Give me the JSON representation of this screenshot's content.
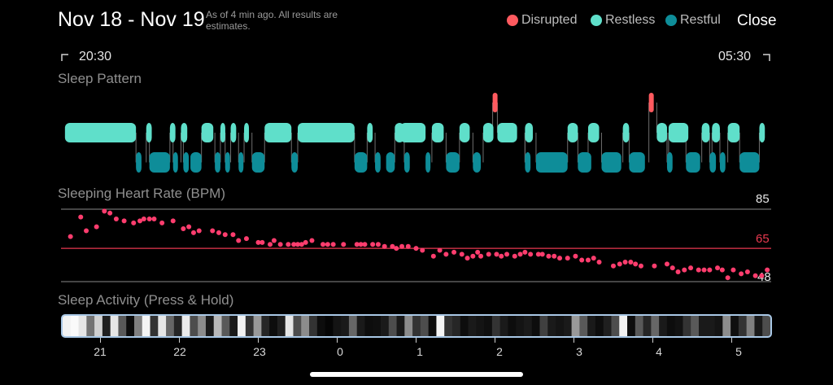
{
  "header": {
    "title": "Nov 18 - Nov 19",
    "subtitle": "As of 4 min ago. All results are estimates.",
    "legend": [
      {
        "label": "Disrupted",
        "color": "#ff5a5f"
      },
      {
        "label": "Restless",
        "color": "#5fdfca"
      },
      {
        "label": "Restful",
        "color": "#0e8d99"
      }
    ],
    "close_label": "Close"
  },
  "timeline": {
    "start": "20:30",
    "end": "05:30"
  },
  "sleep_pattern": {
    "title": "Sleep Pattern"
  },
  "heart_rate": {
    "title": "Sleeping Heart Rate (BPM)",
    "max_label": "85",
    "avg_label": "65",
    "min_label": "48",
    "colors": {
      "dot": "#ff3d6e",
      "avg_line": "#e8394f",
      "ref_line": "#8a8a8a"
    }
  },
  "sleep_activity": {
    "title": "Sleep Activity (Press & Hold)"
  },
  "x_axis_labels": [
    "21",
    "22",
    "23",
    "0",
    "1",
    "2",
    "3",
    "4",
    "5"
  ],
  "chart_data": [
    {
      "type": "line",
      "title": "Sleep Pattern",
      "x_range": [
        "20:30",
        "05:30"
      ],
      "stages": [
        "Disrupted",
        "Restless",
        "Restful"
      ],
      "segments": [
        {
          "stage": "Restless",
          "start": 20.55,
          "end": 21.45
        },
        {
          "stage": "Restful",
          "start": 21.45,
          "end": 21.52
        },
        {
          "stage": "Restful",
          "start": 21.62,
          "end": 21.88
        },
        {
          "stage": "Restless",
          "start": 21.58,
          "end": 21.65
        },
        {
          "stage": "Restful",
          "start": 21.92,
          "end": 21.98
        },
        {
          "stage": "Restless",
          "start": 21.88,
          "end": 21.95
        },
        {
          "stage": "Restful",
          "start": 22.05,
          "end": 22.12
        },
        {
          "stage": "Restless",
          "start": 22.02,
          "end": 22.1
        },
        {
          "stage": "Restful",
          "start": 22.14,
          "end": 22.28
        },
        {
          "stage": "Restless",
          "start": 22.28,
          "end": 22.43
        },
        {
          "stage": "Restful",
          "start": 22.45,
          "end": 22.52
        },
        {
          "stage": "Restless",
          "start": 22.52,
          "end": 22.58
        },
        {
          "stage": "Restful",
          "start": 22.58,
          "end": 22.62
        },
        {
          "stage": "Restless",
          "start": 22.65,
          "end": 22.72
        },
        {
          "stage": "Restful",
          "start": 22.75,
          "end": 22.8
        },
        {
          "stage": "Restless",
          "start": 22.82,
          "end": 22.88
        },
        {
          "stage": "Restful",
          "start": 22.92,
          "end": 23.08
        },
        {
          "stage": "Restless",
          "start": 23.08,
          "end": 23.42
        },
        {
          "stage": "Restful",
          "start": 23.42,
          "end": 23.5
        },
        {
          "stage": "Restless",
          "start": 23.5,
          "end": 24.22
        },
        {
          "stage": "Restful",
          "start": 24.22,
          "end": 24.38
        },
        {
          "stage": "Restless",
          "start": 24.38,
          "end": 24.45
        },
        {
          "stage": "Restful",
          "start": 24.48,
          "end": 24.55
        },
        {
          "stage": "Restless",
          "start": 24.73,
          "end": 24.85
        },
        {
          "stage": "Restful",
          "start": 24.62,
          "end": 24.73
        },
        {
          "stage": "Restful",
          "start": 24.85,
          "end": 24.92
        },
        {
          "stage": "Restless",
          "start": 24.8,
          "end": 25.12
        },
        {
          "stage": "Restful",
          "start": 25.12,
          "end": 25.18
        },
        {
          "stage": "Restless",
          "start": 25.2,
          "end": 25.35
        },
        {
          "stage": "Restful",
          "start": 25.38,
          "end": 25.55
        },
        {
          "stage": "Restless",
          "start": 25.55,
          "end": 25.68
        },
        {
          "stage": "Restful",
          "start": 25.72,
          "end": 25.82
        },
        {
          "stage": "Restless",
          "start": 25.85,
          "end": 25.98
        },
        {
          "stage": "Disrupted",
          "start": 25.97,
          "end": 26.03
        },
        {
          "stage": "Restless",
          "start": 26.03,
          "end": 26.28
        },
        {
          "stage": "Restful",
          "start": 26.38,
          "end": 26.45
        },
        {
          "stage": "Restless",
          "start": 26.38,
          "end": 26.48
        },
        {
          "stage": "Restful",
          "start": 26.52,
          "end": 26.92
        },
        {
          "stage": "Restless",
          "start": 26.92,
          "end": 27.05
        },
        {
          "stage": "Restful",
          "start": 27.05,
          "end": 27.22
        },
        {
          "stage": "Restless",
          "start": 27.18,
          "end": 27.32
        },
        {
          "stage": "Restful",
          "start": 27.35,
          "end": 27.6
        },
        {
          "stage": "Restless",
          "start": 27.62,
          "end": 27.7
        },
        {
          "stage": "Restful",
          "start": 27.7,
          "end": 27.9
        },
        {
          "stage": "Disrupted",
          "start": 27.95,
          "end": 28.01
        },
        {
          "stage": "Restless",
          "start": 28.05,
          "end": 28.18
        },
        {
          "stage": "Restful",
          "start": 28.18,
          "end": 28.25
        },
        {
          "stage": "Restless",
          "start": 28.2,
          "end": 28.45
        },
        {
          "stage": "Restful",
          "start": 28.42,
          "end": 28.6
        },
        {
          "stage": "Restless",
          "start": 28.62,
          "end": 28.72
        },
        {
          "stage": "Restful",
          "start": 28.72,
          "end": 28.8
        },
        {
          "stage": "Restless",
          "start": 28.75,
          "end": 28.85
        },
        {
          "stage": "Restful",
          "start": 28.85,
          "end": 28.92
        },
        {
          "stage": "Restless",
          "start": 28.95,
          "end": 29.1
        },
        {
          "stage": "Restful",
          "start": 29.1,
          "end": 29.35
        },
        {
          "stage": "Restless",
          "start": 29.35,
          "end": 29.42
        }
      ]
    },
    {
      "type": "scatter",
      "title": "Sleeping Heart Rate (BPM)",
      "x_range": [
        "20:30",
        "05:30"
      ],
      "ylim": [
        48,
        85
      ],
      "reference_lines": [
        85,
        65,
        48
      ],
      "x": [
        20.62,
        20.75,
        20.82,
        20.95,
        21.05,
        21.12,
        21.2,
        21.3,
        21.42,
        21.5,
        21.55,
        21.62,
        21.68,
        21.78,
        21.92,
        22.05,
        22.12,
        22.18,
        22.25,
        22.42,
        22.5,
        22.58,
        22.68,
        22.75,
        22.85,
        23.0,
        23.05,
        23.15,
        23.2,
        23.28,
        23.38,
        23.45,
        23.5,
        23.55,
        23.6,
        23.68,
        23.82,
        23.88,
        23.95,
        24.08,
        24.25,
        24.3,
        24.35,
        24.45,
        24.52,
        24.6,
        24.7,
        24.75,
        24.82,
        24.9,
        25.0,
        25.08,
        25.22,
        25.3,
        25.38,
        25.48,
        25.58,
        25.65,
        25.72,
        25.78,
        25.82,
        25.92,
        26.02,
        26.08,
        26.15,
        26.25,
        26.32,
        26.38,
        26.45,
        26.55,
        26.6,
        26.68,
        26.75,
        26.82,
        26.92,
        27.02,
        27.1,
        27.18,
        27.25,
        27.32,
        27.5,
        27.58,
        27.65,
        27.72,
        27.78,
        27.85,
        28.02,
        28.18,
        28.25,
        28.32,
        28.4,
        28.48,
        28.58,
        28.65,
        28.72,
        28.82,
        28.88,
        28.95,
        29.02,
        29.12,
        29.2,
        29.3,
        29.38,
        29.45
      ],
      "y": [
        71,
        81,
        74,
        76,
        84,
        83,
        80,
        79,
        78,
        79,
        80,
        80,
        80,
        78,
        79,
        75,
        76,
        73,
        74,
        74,
        73,
        72,
        72,
        69,
        70,
        68,
        68,
        67,
        69,
        67,
        67,
        67,
        67,
        67,
        68,
        69,
        67,
        67,
        67,
        67,
        67,
        67,
        67,
        67,
        67,
        66,
        66,
        65,
        66,
        66,
        65,
        64,
        61,
        64,
        62,
        63,
        62,
        60,
        61,
        63,
        61,
        62,
        62,
        61,
        62,
        61,
        62,
        63,
        62,
        62,
        62,
        61,
        61,
        60,
        60,
        61,
        59,
        59,
        60,
        58,
        56,
        57,
        58,
        58,
        57,
        56,
        56,
        57,
        55,
        53,
        54,
        55,
        54,
        54,
        54,
        55,
        54,
        50,
        54,
        52,
        53,
        51,
        51,
        54
      ]
    },
    {
      "type": "heatmap",
      "title": "Sleep Activity (Press & Hold)",
      "x_range": [
        "20:30",
        "05:30"
      ],
      "values": [
        0.95,
        0.98,
        0.9,
        0.45,
        0.82,
        0.12,
        0.9,
        0.35,
        0.05,
        0.5,
        0.96,
        0.2,
        0.9,
        0.4,
        0.15,
        0.92,
        0.3,
        0.55,
        0.1,
        0.72,
        0.35,
        0.1,
        0.95,
        0.2,
        0.6,
        0.15,
        0.05,
        0.12,
        0.9,
        0.3,
        0.55,
        0.2,
        0.05,
        0.02,
        0.08,
        0.1,
        0.4,
        0.1,
        0.05,
        0.06,
        0.1,
        0.3,
        0.1,
        0.55,
        0.2,
        0.3,
        0.05,
        0.96,
        0.2,
        0.15,
        0.05,
        0.1,
        0.08,
        0.06,
        0.2,
        0.1,
        0.05,
        0.08,
        0.1,
        0.05,
        0.25,
        0.1,
        0.08,
        0.1,
        0.6,
        0.35,
        0.1,
        0.05,
        0.12,
        0.3,
        0.95,
        0.05,
        0.35,
        0.15,
        0.4,
        0.1,
        0.05,
        0.07,
        0.2,
        0.35,
        0.1,
        0.1,
        0.08,
        0.55,
        0.06,
        0.2,
        0.5,
        0.1,
        0.3
      ]
    }
  ]
}
